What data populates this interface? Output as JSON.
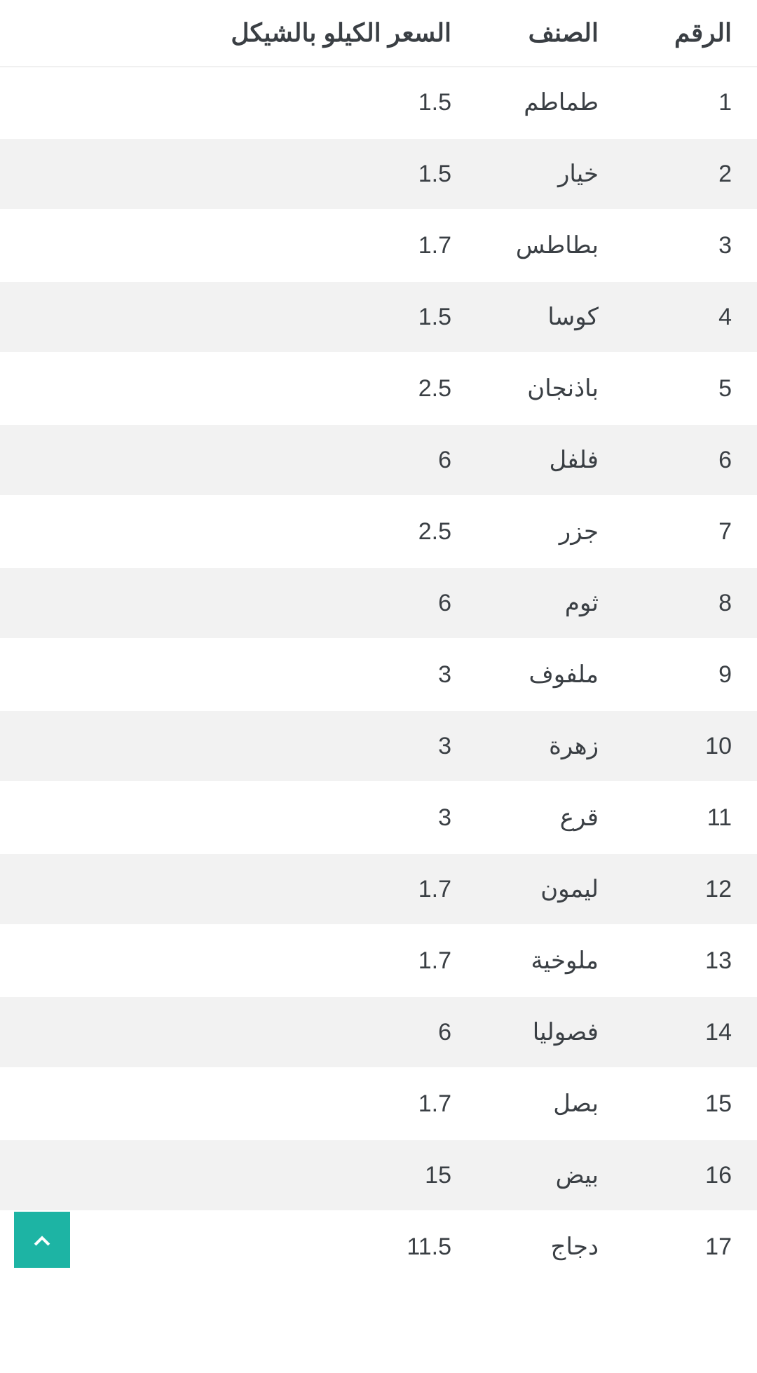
{
  "table": {
    "columns": [
      "الرقم",
      "الصنف",
      "السعر الكيلو بالشيكل"
    ],
    "rows": [
      [
        "1",
        "طماطم",
        "1.5"
      ],
      [
        "2",
        "خيار",
        "1.5"
      ],
      [
        "3",
        "بطاطس",
        "1.7"
      ],
      [
        "4",
        "كوسا",
        "1.5"
      ],
      [
        "5",
        "باذنجان",
        "2.5"
      ],
      [
        "6",
        "فلفل",
        "6"
      ],
      [
        "7",
        "جزر",
        "2.5"
      ],
      [
        "8",
        "ثوم",
        "6"
      ],
      [
        "9",
        "ملفوف",
        "3"
      ],
      [
        "10",
        "زهرة",
        "3"
      ],
      [
        "11",
        "قرع",
        "3"
      ],
      [
        "12",
        "ليمون",
        "1.7"
      ],
      [
        "13",
        "ملوخية",
        "1.7"
      ],
      [
        "14",
        "فصوليا",
        "6"
      ],
      [
        "15",
        "بصل",
        "1.7"
      ],
      [
        "16",
        "بيض",
        "15"
      ],
      [
        "17",
        "دجاج",
        "11.5"
      ]
    ],
    "header_bg": "#ffffff",
    "row_odd_bg": "#ffffff",
    "row_even_bg": "#f2f2f2",
    "text_color": "#3a3f44",
    "header_fontsize": 36,
    "cell_fontsize": 34
  },
  "scroll_button": {
    "bg": "#1db4a4",
    "icon_color": "#ffffff"
  }
}
